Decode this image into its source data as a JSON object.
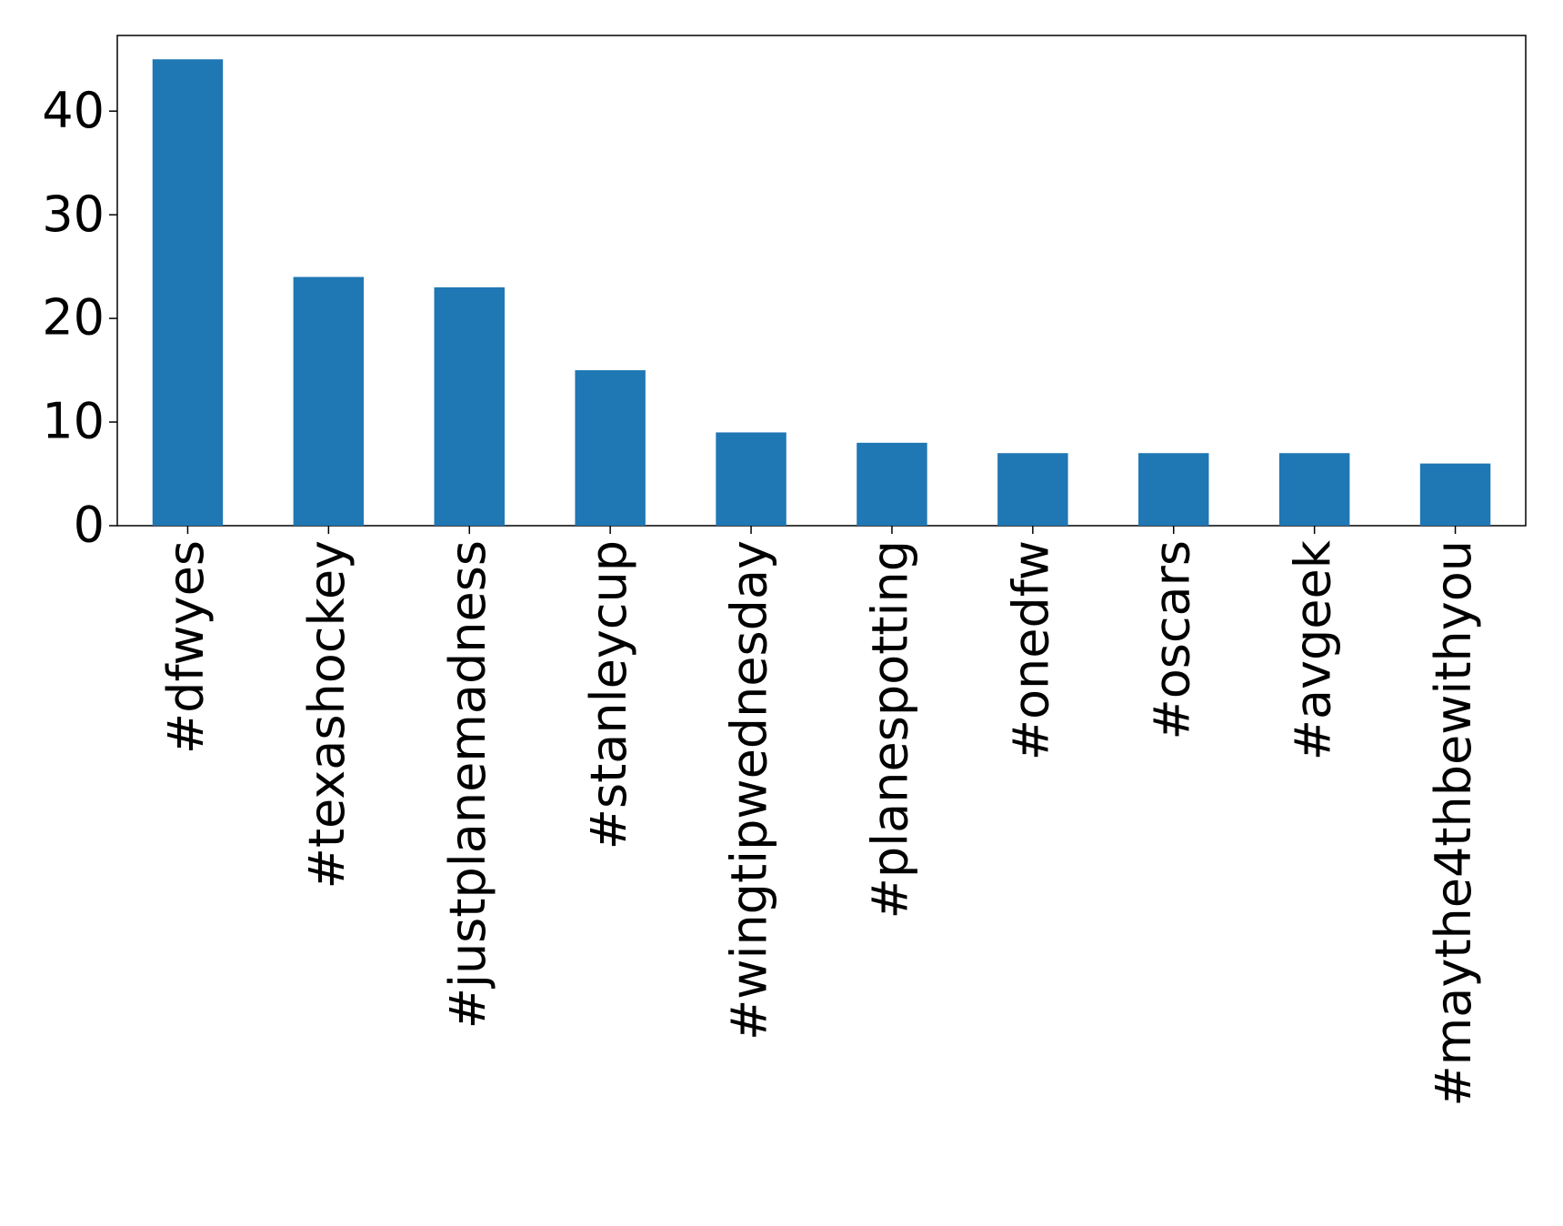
{
  "chart_data": {
    "type": "bar",
    "categories": [
      "#dfwyes",
      "#texashockey",
      "#justplanemadness",
      "#stanleycup",
      "#wingtipwednesday",
      "#planespotting",
      "#onedfw",
      "#oscars",
      "#avgeek",
      "#maythe4thbewithyou"
    ],
    "values": [
      45,
      24,
      23,
      15,
      9,
      8,
      7,
      7,
      7,
      6
    ],
    "color": "#1f77b4",
    "ylim": [
      0,
      47.3
    ],
    "yticks": [
      0,
      10,
      20,
      30,
      40
    ],
    "grid": false
  }
}
